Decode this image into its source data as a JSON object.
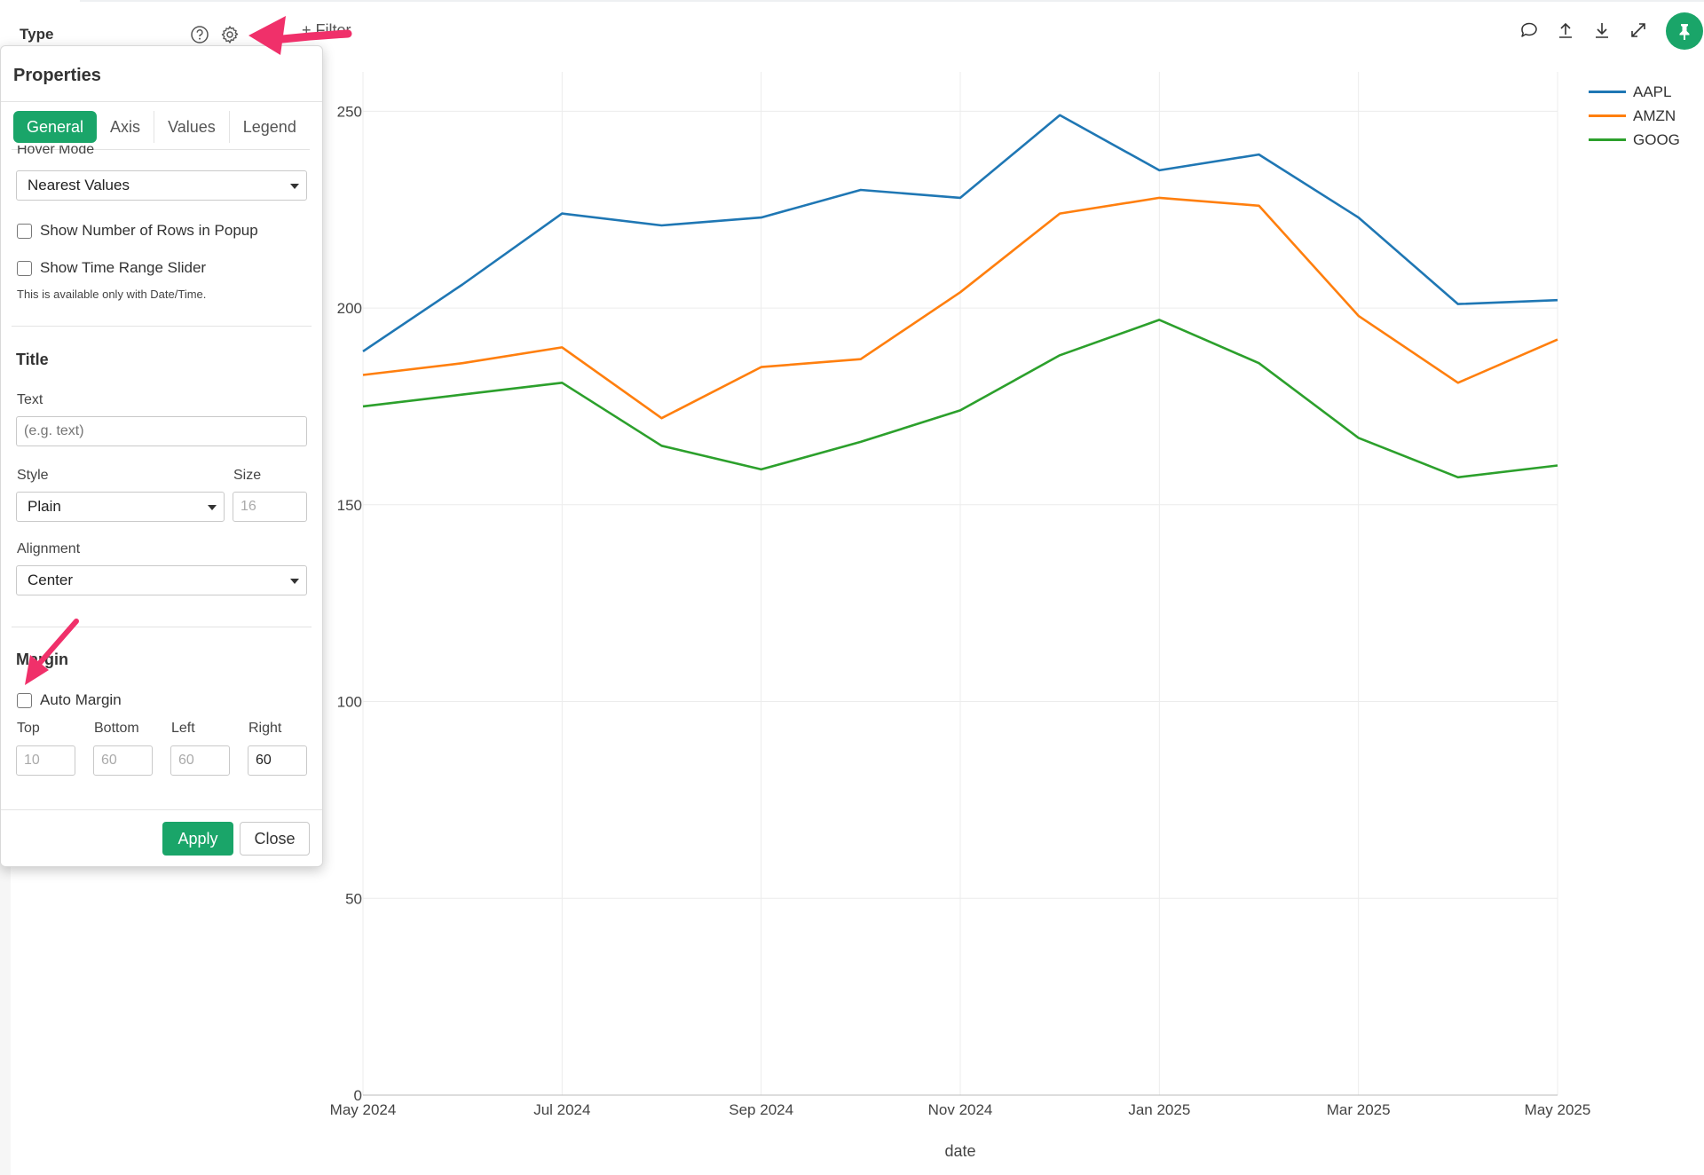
{
  "header": {
    "type_label": "Type",
    "filter_label": "Filter",
    "icons": [
      "help-circle-icon",
      "gear-icon",
      "plus-icon",
      "comment-icon",
      "upload-icon",
      "download-icon",
      "expand-icon",
      "pin-icon"
    ]
  },
  "properties": {
    "title": "Properties",
    "tabs": [
      {
        "label": "General",
        "active": true
      },
      {
        "label": "Axis",
        "active": false
      },
      {
        "label": "Values",
        "active": false
      },
      {
        "label": "Legend",
        "active": false
      }
    ],
    "hover_mode_label": "Hover Mode",
    "hover_mode_value": "Nearest Values",
    "show_rows_label": "Show Number of Rows in Popup",
    "show_rows_checked": false,
    "show_slider_label": "Show Time Range Slider",
    "show_slider_checked": false,
    "slider_note": "This is available only with Date/Time.",
    "title_section": {
      "heading": "Title",
      "text_label": "Text",
      "text_placeholder": "(e.g. text)",
      "style_label": "Style",
      "style_value": "Plain",
      "size_label": "Size",
      "size_placeholder": "16",
      "alignment_label": "Alignment",
      "alignment_value": "Center"
    },
    "margin_section": {
      "heading": "Margin",
      "auto_margin_label": "Auto Margin",
      "auto_margin_checked": false,
      "top_label": "Top",
      "top_value": "10",
      "bottom_label": "Bottom",
      "bottom_value": "60",
      "left_label": "Left",
      "left_value": "60",
      "right_label": "Right",
      "right_value": "60"
    },
    "apply_label": "Apply",
    "close_label": "Close"
  },
  "colors": {
    "accent": "#1aa569",
    "annotation_arrow": "#f0306a"
  },
  "chart_data": {
    "type": "line",
    "xlabel": "date",
    "ylabel": "",
    "ylim": [
      0,
      260
    ],
    "yticks": [
      0,
      50,
      100,
      150,
      200,
      250
    ],
    "x": [
      "2024-05",
      "2024-06",
      "2024-07",
      "2024-08",
      "2024-09",
      "2024-10",
      "2024-11",
      "2024-12",
      "2025-01",
      "2025-02",
      "2025-03",
      "2025-04",
      "2025-05"
    ],
    "xtick_labels": [
      "May 2024",
      "Jul 2024",
      "Sep 2024",
      "Nov 2024",
      "Jan 2025",
      "Mar 2025",
      "May 2025"
    ],
    "xtick_positions": [
      "2024-05",
      "2024-07",
      "2024-09",
      "2024-11",
      "2025-01",
      "2025-03",
      "2025-05"
    ],
    "grid": true,
    "legend_position": "top-right",
    "series": [
      {
        "name": "AAPL",
        "color": "#1f77b4",
        "values": [
          189,
          206,
          224,
          221,
          223,
          230,
          228,
          249,
          235,
          239,
          223,
          201,
          202
        ]
      },
      {
        "name": "AMZN",
        "color": "#ff7f0e",
        "values": [
          183,
          186,
          190,
          172,
          185,
          187,
          204,
          224,
          228,
          226,
          198,
          181,
          192
        ]
      },
      {
        "name": "GOOG",
        "color": "#2ca02c",
        "values": [
          175,
          178,
          181,
          165,
          159,
          166,
          174,
          188,
          197,
          186,
          167,
          157,
          160
        ]
      }
    ]
  }
}
